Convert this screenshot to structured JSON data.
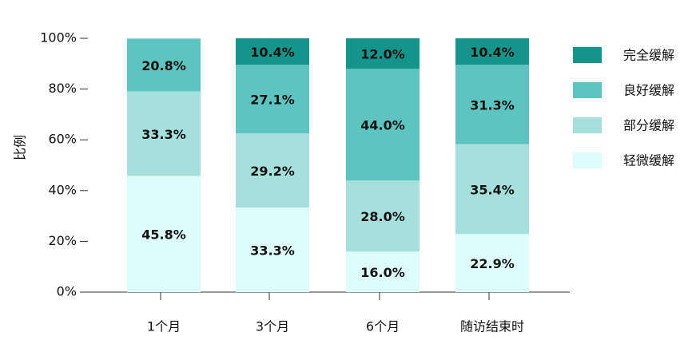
{
  "chart_data": {
    "type": "stacked_bar",
    "y_label": "比例",
    "categories": [
      "1个月",
      "3个月",
      "6个月",
      "随访结束时"
    ],
    "series": [
      {
        "name": "轻微缓解",
        "color": "#dcfdfa",
        "values": [
          45.8,
          33.3,
          16.0,
          22.9
        ],
        "value_labels": [
          "45.8%",
          "33.3%",
          "16.0%",
          "22.9%"
        ]
      },
      {
        "name": "部分缓解",
        "color": "#a6e0dd",
        "values": [
          33.3,
          29.2,
          28.0,
          35.4
        ],
        "value_labels": [
          "33.3%",
          "29.2%",
          "28.0%",
          "35.4%"
        ]
      },
      {
        "name": "良好缓解",
        "color": "#5ec4bf",
        "values": [
          20.8,
          27.1,
          44.0,
          31.3
        ],
        "value_labels": [
          "20.8%",
          "27.1%",
          "44.0%",
          "31.3%"
        ]
      },
      {
        "name": "完全缓解",
        "color": "#15958a",
        "values": [
          null,
          10.4,
          12.0,
          10.4
        ],
        "value_labels": [
          null,
          "10.4%",
          "12.0%",
          "10.4%"
        ]
      }
    ],
    "ylim": [
      0,
      100
    ],
    "yticks": [
      {
        "value": 0,
        "label": "0%"
      },
      {
        "value": 20,
        "label": "20%"
      },
      {
        "value": 40,
        "label": "40%"
      },
      {
        "value": 60,
        "label": "60%"
      },
      {
        "value": 80,
        "label": "80%"
      },
      {
        "value": 100,
        "label": "100%"
      }
    ],
    "legend": "right"
  }
}
